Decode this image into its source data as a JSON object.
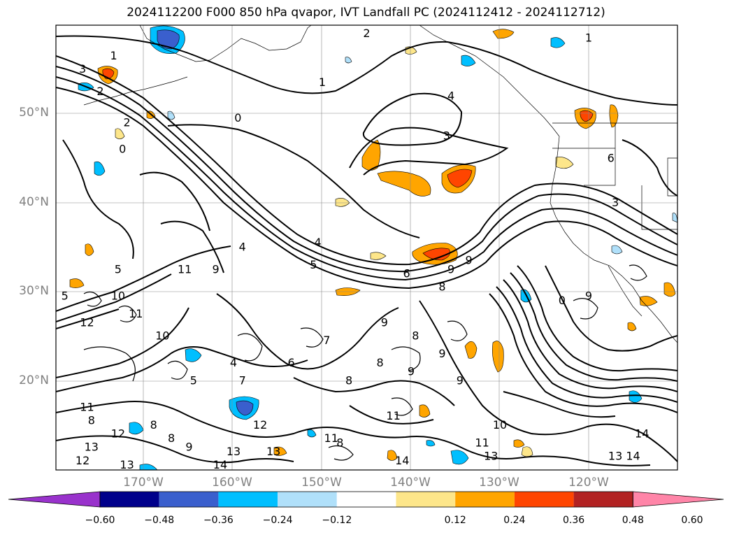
{
  "title": "2024112200 F000 850 hPa qvapor, IVT Landfall PC (2024112412 - 2024112712)",
  "map": {
    "lat_labels": [
      "50°N",
      "40°N",
      "30°N",
      "20°N"
    ],
    "lon_labels": [
      "170°W",
      "160°W",
      "150°W",
      "140°W",
      "130°W",
      "120°W"
    ],
    "extent": {
      "lon_min": -178,
      "lon_max": -108,
      "lat_min": 10,
      "lat_max": 60
    }
  },
  "colorbar": {
    "ticks": [
      "−0.60",
      "−0.48",
      "−0.36",
      "−0.24",
      "−0.12",
      "0.12",
      "0.24",
      "0.36",
      "0.48",
      "0.60"
    ],
    "colors": [
      "#9932cc",
      "#00008b",
      "#3a5fcd",
      "#00bfff",
      "#b0e0fa",
      "#ffffff",
      "#fde68a",
      "#ffa500",
      "#ff4500",
      "#b22222",
      "#ff85a8"
    ]
  },
  "contour_labels": [
    {
      "text": "2",
      "lon": -143,
      "lat": 59
    },
    {
      "text": "1",
      "lon": -118,
      "lat": 58.5
    },
    {
      "text": "1",
      "lon": -171.5,
      "lat": 56.5
    },
    {
      "text": "3",
      "lon": -175,
      "lat": 55
    },
    {
      "text": "2",
      "lon": -173,
      "lat": 52.5
    },
    {
      "text": "1",
      "lon": -148,
      "lat": 53.5
    },
    {
      "text": "4",
      "lon": -133.5,
      "lat": 52
    },
    {
      "text": "2",
      "lon": -170,
      "lat": 49
    },
    {
      "text": "0",
      "lon": -157.5,
      "lat": 49.5
    },
    {
      "text": "3",
      "lon": -134,
      "lat": 47.5
    },
    {
      "text": "0",
      "lon": -170.5,
      "lat": 46
    },
    {
      "text": "6",
      "lon": -115.5,
      "lat": 45
    },
    {
      "text": "3",
      "lon": -115,
      "lat": 40
    },
    {
      "text": "4",
      "lon": -157,
      "lat": 35
    },
    {
      "text": "11",
      "lon": -163.5,
      "lat": 32.5
    },
    {
      "text": "4",
      "lon": -148.5,
      "lat": 35.5
    },
    {
      "text": "5",
      "lon": -149,
      "lat": 33
    },
    {
      "text": "9",
      "lon": -160,
      "lat": 32.5
    },
    {
      "text": "9",
      "lon": -133.5,
      "lat": 32.5
    },
    {
      "text": "9",
      "lon": -131.5,
      "lat": 33.5
    },
    {
      "text": "6",
      "lon": -138.5,
      "lat": 32
    },
    {
      "text": "8",
      "lon": -134.5,
      "lat": 30.5
    },
    {
      "text": "5",
      "lon": -171,
      "lat": 32.5
    },
    {
      "text": "10",
      "lon": -171,
      "lat": 29.5
    },
    {
      "text": "5",
      "lon": -177,
      "lat": 29.5
    },
    {
      "text": "12",
      "lon": -174.5,
      "lat": 26.5
    },
    {
      "text": "11",
      "lon": -169,
      "lat": 27.5
    },
    {
      "text": "9",
      "lon": -118,
      "lat": 29.5
    },
    {
      "text": "0",
      "lon": -121,
      "lat": 29
    },
    {
      "text": "10",
      "lon": -166,
      "lat": 25
    },
    {
      "text": "7",
      "lon": -147.5,
      "lat": 24.5
    },
    {
      "text": "8",
      "lon": -137.5,
      "lat": 25
    },
    {
      "text": "9",
      "lon": -141,
      "lat": 26.5
    },
    {
      "text": "9",
      "lon": -134.5,
      "lat": 23
    },
    {
      "text": "4",
      "lon": -158,
      "lat": 22
    },
    {
      "text": "6",
      "lon": -151.5,
      "lat": 22
    },
    {
      "text": "8",
      "lon": -141.5,
      "lat": 22
    },
    {
      "text": "9",
      "lon": -138,
      "lat": 21
    },
    {
      "text": "5",
      "lon": -162.5,
      "lat": 20
    },
    {
      "text": "7",
      "lon": -157,
      "lat": 20
    },
    {
      "text": "8",
      "lon": -145,
      "lat": 20
    },
    {
      "text": "9",
      "lon": -132.5,
      "lat": 20
    },
    {
      "text": "11",
      "lon": -174.5,
      "lat": 17
    },
    {
      "text": "8",
      "lon": -174,
      "lat": 15.5
    },
    {
      "text": "12",
      "lon": -171,
      "lat": 14
    },
    {
      "text": "8",
      "lon": -167,
      "lat": 15
    },
    {
      "text": "9",
      "lon": -163,
      "lat": 12.5
    },
    {
      "text": "12",
      "lon": -155,
      "lat": 15
    },
    {
      "text": "13",
      "lon": -153.5,
      "lat": 12
    },
    {
      "text": "11",
      "lon": -140,
      "lat": 16
    },
    {
      "text": "11",
      "lon": -147,
      "lat": 13.5
    },
    {
      "text": "8",
      "lon": -146,
      "lat": 13
    },
    {
      "text": "10",
      "lon": -128,
      "lat": 15
    },
    {
      "text": "14",
      "lon": -112,
      "lat": 14
    },
    {
      "text": "13",
      "lon": -174,
      "lat": 12.5
    },
    {
      "text": "12",
      "lon": -175,
      "lat": 11
    },
    {
      "text": "13",
      "lon": -170,
      "lat": 10.5
    },
    {
      "text": "14",
      "lon": -159.5,
      "lat": 10.5
    },
    {
      "text": "13",
      "lon": -158,
      "lat": 12
    },
    {
      "text": "14",
      "lon": -139,
      "lat": 11
    },
    {
      "text": "13",
      "lon": -129,
      "lat": 11.5
    },
    {
      "text": "11",
      "lon": -130,
      "lat": 13
    },
    {
      "text": "13",
      "lon": -115,
      "lat": 11.5
    },
    {
      "text": "14",
      "lon": -113,
      "lat": 11.5
    },
    {
      "text": "8",
      "lon": -165,
      "lat": 13.5
    }
  ]
}
